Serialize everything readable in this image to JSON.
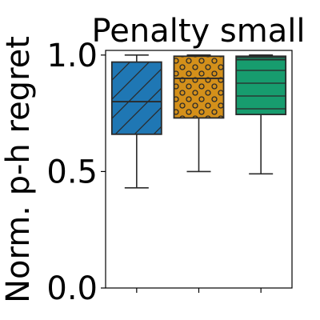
{
  "chart_data": {
    "type": "box",
    "title": "Penalty small",
    "ylabel": "Norm. p-h regret",
    "xlabel": "",
    "ylim": [
      0.0,
      1.02
    ],
    "yticks": [
      0.0,
      0.5,
      1.0
    ],
    "ytick_labels": [
      "0.0",
      "0.5",
      "1.0"
    ],
    "categories": [
      "",
      "",
      ""
    ],
    "grid": false,
    "boxes": [
      {
        "color": "#1f77b4",
        "hatch": "diagonal",
        "whisker_low": 0.43,
        "q1": 0.66,
        "median": 0.8,
        "q3": 0.97,
        "whisker_high": 1.0
      },
      {
        "color": "#d4901a",
        "hatch": "circles",
        "whisker_low": 0.5,
        "q1": 0.73,
        "median": 0.9,
        "q3": 0.995,
        "whisker_high": 1.0
      },
      {
        "color": "#179c6e",
        "hatch": "horizontal",
        "whisker_low": 0.49,
        "q1": 0.745,
        "median": 0.98,
        "q3": 0.995,
        "whisker_high": 1.0
      }
    ]
  }
}
